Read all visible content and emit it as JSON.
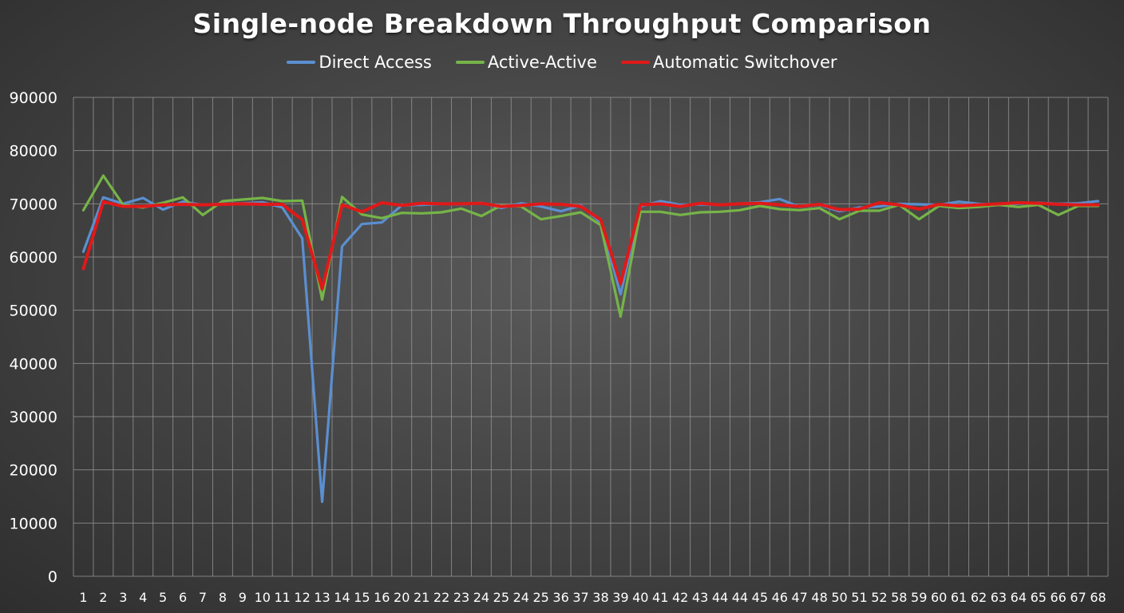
{
  "chart_data": {
    "type": "line",
    "title": "Single-node Breakdown Throughput Comparison",
    "xlabel": "",
    "ylabel": "",
    "ylim": [
      0,
      90000
    ],
    "yticks": [
      0,
      10000,
      20000,
      30000,
      40000,
      50000,
      60000,
      70000,
      80000,
      90000
    ],
    "grid": true,
    "legend_position": "top",
    "categories": [
      "1",
      "2",
      "3",
      "4",
      "5",
      "6",
      "7",
      "8",
      "9",
      "10",
      "11",
      "12",
      "13",
      "14",
      "15",
      "16",
      "20",
      "21",
      "22",
      "23",
      "24",
      "25",
      "24",
      "25",
      "36",
      "37",
      "38",
      "39",
      "40",
      "41",
      "42",
      "43",
      "44",
      "44",
      "45",
      "46",
      "47",
      "48",
      "50",
      "51",
      "52",
      "58",
      "59",
      "60",
      "61",
      "62",
      "63",
      "64",
      "65",
      "66",
      "67",
      "68"
    ],
    "series": [
      {
        "name": "Direct Access",
        "color": "#5b8fd0",
        "values": [
          61000,
          71200,
          70000,
          71100,
          68900,
          70400,
          69800,
          70000,
          70100,
          70300,
          69300,
          63500,
          14000,
          62000,
          66200,
          66500,
          69700,
          69800,
          70000,
          69900,
          70200,
          69200,
          70100,
          69500,
          68600,
          69700,
          66500,
          53000,
          69500,
          70500,
          69800,
          69900,
          69800,
          70000,
          70300,
          70900,
          69400,
          69800,
          68600,
          69300,
          69500,
          70000,
          69900,
          69800,
          70400,
          70000,
          69800,
          70000,
          70200,
          70000,
          70100,
          70500
        ]
      },
      {
        "name": "Active-Active",
        "color": "#76b448",
        "values": [
          68800,
          75300,
          69800,
          69300,
          70200,
          71200,
          67900,
          70500,
          70800,
          71100,
          70500,
          70600,
          52000,
          71300,
          68000,
          67300,
          68300,
          68200,
          68400,
          69100,
          67700,
          69700,
          69500,
          67100,
          67700,
          68400,
          66000,
          48800,
          68500,
          68500,
          67900,
          68400,
          68500,
          68800,
          69600,
          69000,
          68800,
          69200,
          67100,
          68700,
          68700,
          69800,
          67100,
          69600,
          69200,
          69400,
          69800,
          69400,
          69800,
          67900,
          69600,
          69600
        ]
      },
      {
        "name": "Automatic Switchover",
        "color": "#e01919",
        "values": [
          57800,
          70400,
          69500,
          69500,
          69800,
          69900,
          69800,
          69900,
          70000,
          69900,
          69900,
          67000,
          54000,
          69800,
          68500,
          70200,
          69700,
          70100,
          70000,
          70000,
          70100,
          69500,
          69700,
          70000,
          69900,
          69500,
          67000,
          55000,
          69800,
          70000,
          69500,
          70100,
          69800,
          70000,
          70100,
          69800,
          69500,
          69900,
          68900,
          69000,
          70200,
          69800,
          69000,
          69900,
          69600,
          69800,
          70000,
          70200,
          70100,
          69900,
          69800,
          69800
        ]
      }
    ]
  }
}
